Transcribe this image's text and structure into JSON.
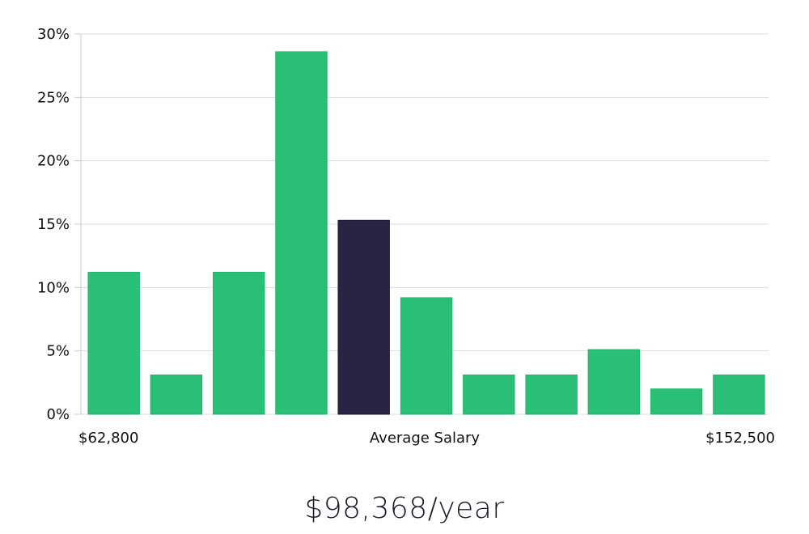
{
  "chart_data": {
    "type": "bar",
    "categories": [
      "$62,800",
      "",
      "",
      "",
      "Average Salary",
      "",
      "",
      "",
      "",
      "",
      "$152,500"
    ],
    "values": [
      11.2,
      3.1,
      11.2,
      28.6,
      15.3,
      9.2,
      3.1,
      3.1,
      5.1,
      2.0,
      3.1
    ],
    "highlight_index": 4,
    "ylim": [
      0,
      30
    ],
    "yticks": [
      "0%",
      "5%",
      "10%",
      "15%",
      "20%",
      "25%",
      "30%"
    ],
    "ytick_values": [
      0,
      5,
      10,
      15,
      20,
      25,
      30
    ],
    "x_labels": {
      "left": "$62,800",
      "center": "Average Salary",
      "right": "$152,500"
    },
    "grid": true,
    "colors": {
      "bar": "#2abf76",
      "highlight": "#272444",
      "grid": "#dddddd",
      "axis": "#cccccc"
    }
  },
  "summary": {
    "average_salary": "$98,368/year"
  }
}
